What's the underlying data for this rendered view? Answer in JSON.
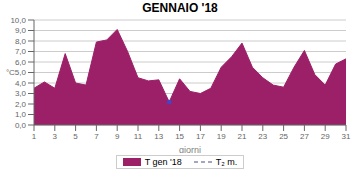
{
  "chart_data": {
    "type": "area",
    "title": "GENNAIO '18",
    "x_label": "giorni",
    "x": [
      1,
      2,
      3,
      4,
      5,
      6,
      7,
      8,
      9,
      10,
      11,
      12,
      13,
      14,
      15,
      16,
      17,
      18,
      19,
      20,
      21,
      22,
      23,
      24,
      25,
      26,
      27,
      28,
      29,
      30,
      31
    ],
    "series": [
      {
        "name": "T gen '18",
        "type": "area",
        "color": "#9b2068",
        "values": [
          3.5,
          4.1,
          3.5,
          6.8,
          4.0,
          3.8,
          7.9,
          8.1,
          9.1,
          7.0,
          4.5,
          4.2,
          4.3,
          2.2,
          4.4,
          3.2,
          3.0,
          3.5,
          5.5,
          6.5,
          7.8,
          5.5,
          4.5,
          3.8,
          3.6,
          5.5,
          7.1,
          4.8,
          3.8,
          5.8,
          6.3
        ]
      },
      {
        "name": "T₂ m.",
        "type": "line",
        "color": "#8888aa",
        "line_style": "dashed",
        "values": [
          null,
          null,
          null,
          null,
          null,
          null,
          null,
          null,
          null,
          null,
          null,
          null,
          null,
          null,
          null,
          null,
          null,
          null,
          null,
          null,
          null,
          null,
          null,
          null,
          null,
          null,
          null,
          null,
          null,
          null,
          null
        ]
      }
    ],
    "markers": [
      {
        "x": 14,
        "y": 2.2,
        "color": "#4444cc",
        "marker": "square"
      }
    ],
    "xlim": [
      1,
      31
    ],
    "xticks": [
      1,
      3,
      5,
      7,
      9,
      11,
      13,
      15,
      17,
      19,
      21,
      23,
      25,
      27,
      29,
      31
    ],
    "ylim": [
      0.0,
      10.0
    ],
    "yticks": [
      {
        "value": 0,
        "label": "0,0"
      },
      {
        "value": 1,
        "label": "1,0"
      },
      {
        "value": 2,
        "label": "2,0"
      },
      {
        "value": 3,
        "label": "3,0"
      },
      {
        "value": 4,
        "label": "4,0"
      },
      {
        "value": 5,
        "label": "°C5,0"
      },
      {
        "value": 6,
        "label": "6,0"
      },
      {
        "value": 7,
        "label": "7,0"
      },
      {
        "value": 8,
        "label": "8,0"
      },
      {
        "value": 9,
        "label": "9,0"
      },
      {
        "value": 10,
        "label": "10,0"
      }
    ],
    "grid": true,
    "legend": "bottom"
  }
}
